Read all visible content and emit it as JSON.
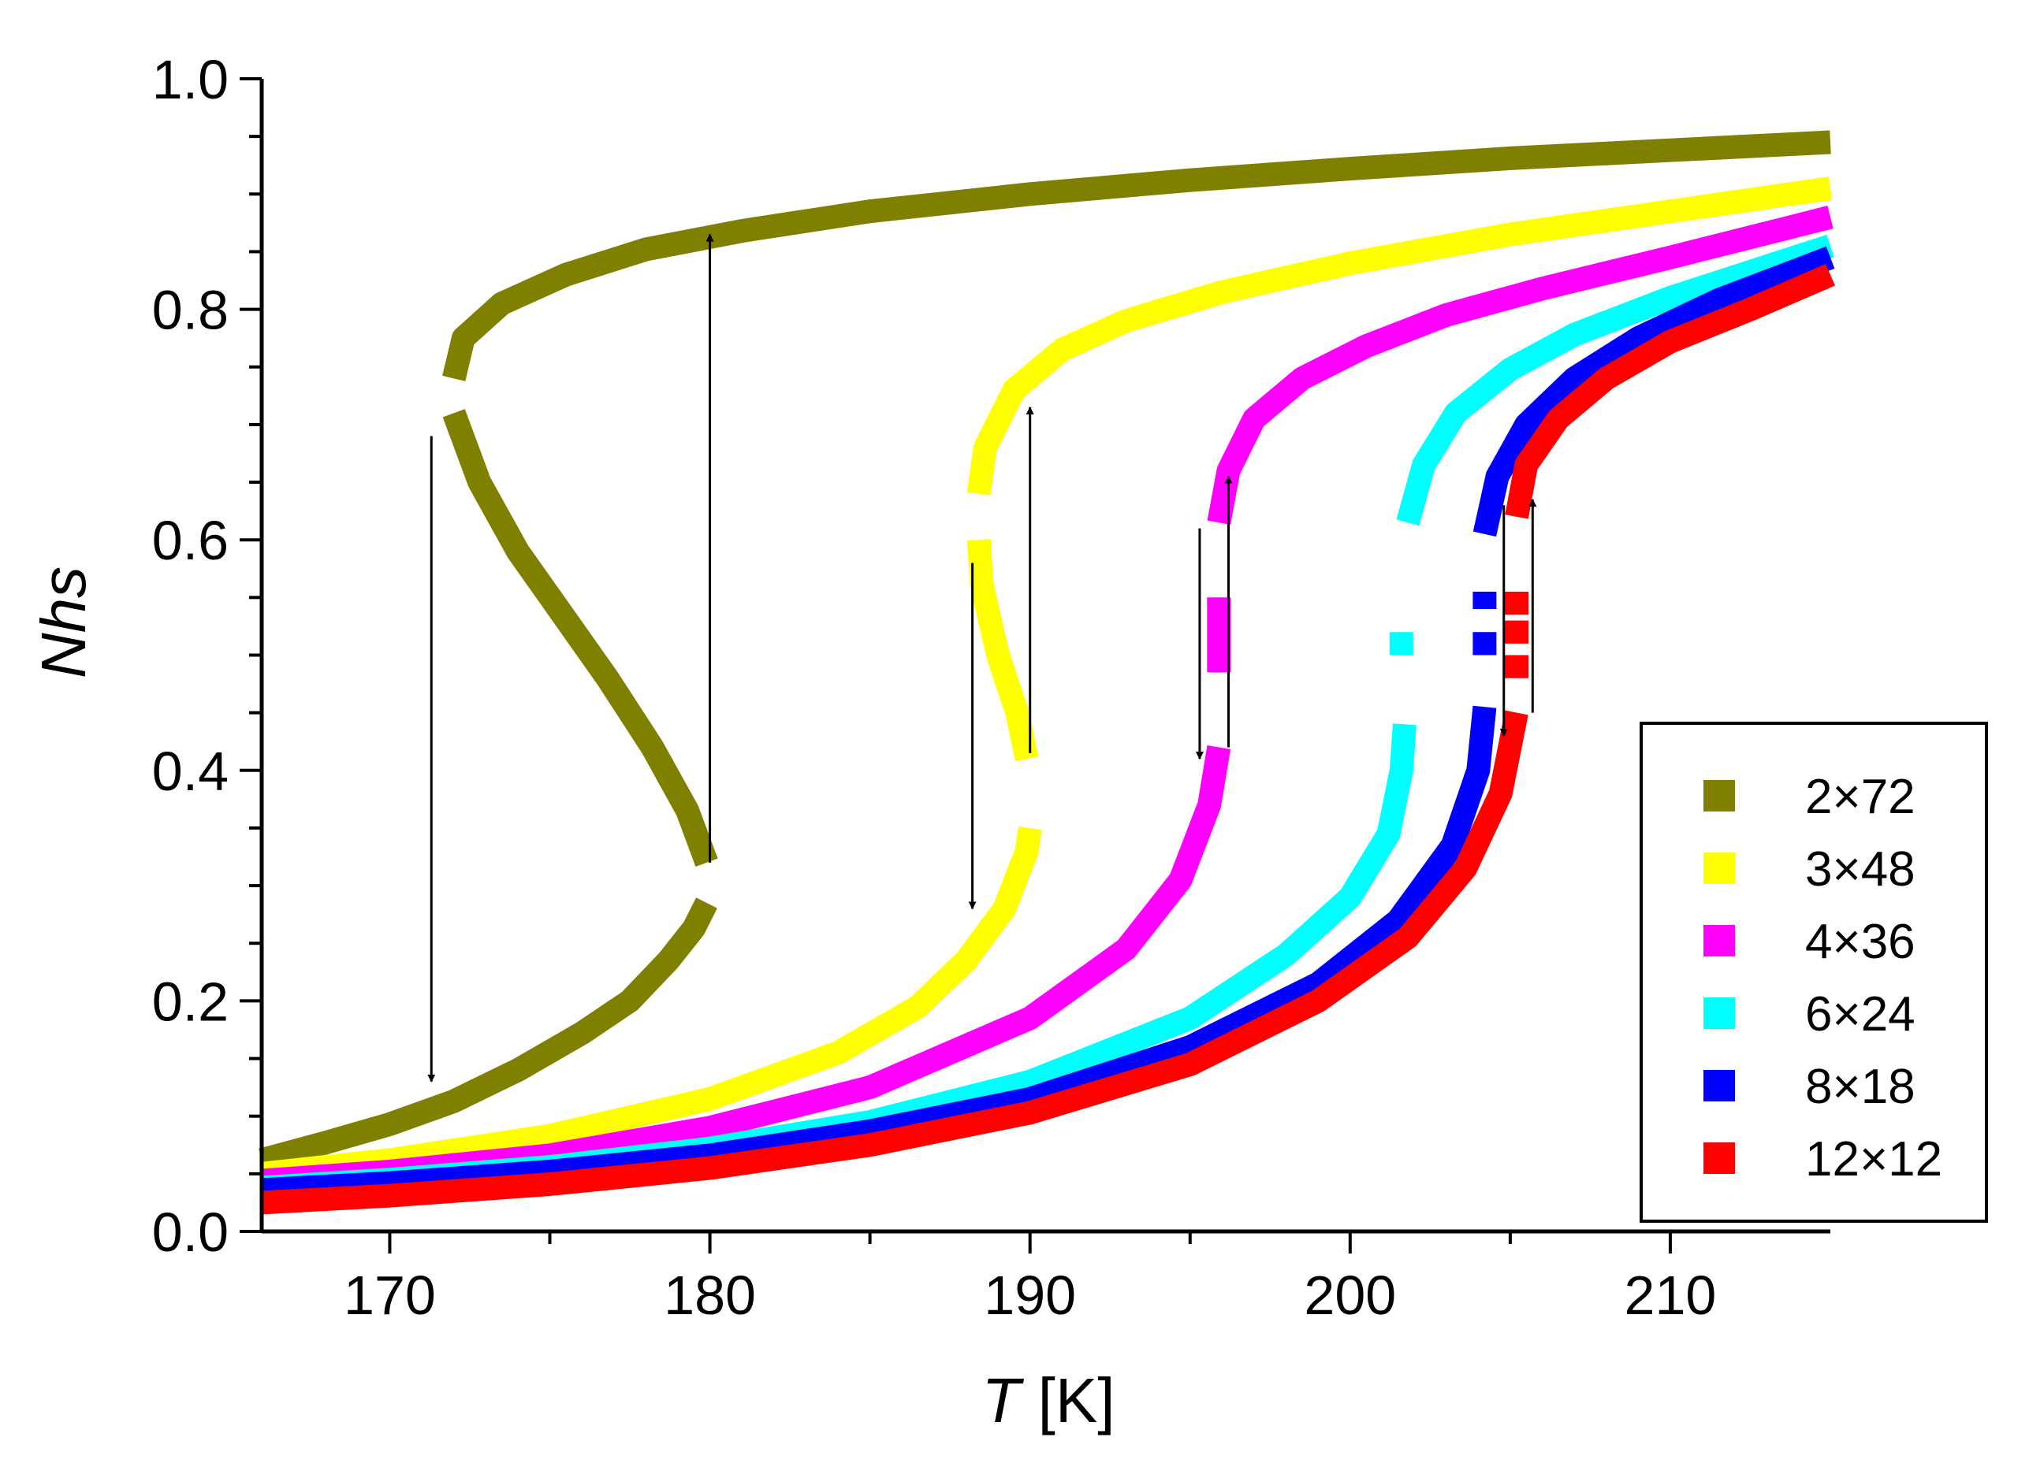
{
  "chart_data": {
    "type": "line",
    "title": "",
    "xlabel_italic": "T",
    "xlabel_unit": " [K]",
    "ylabel_italic": "Nhs",
    "xlim": [
      166,
      215
    ],
    "ylim": [
      0.0,
      1.0
    ],
    "x_ticks": [
      170,
      180,
      190,
      200,
      210
    ],
    "x_tick_labels": [
      "170",
      "180",
      "190",
      "200",
      "210"
    ],
    "y_ticks": [
      0.0,
      0.2,
      0.4,
      0.6,
      0.8,
      1.0
    ],
    "y_tick_labels": [
      "0.0",
      "0.2",
      "0.4",
      "0.6",
      "0.8",
      "1.0"
    ],
    "legend_position": "bottom-right",
    "series": [
      {
        "name": "2×72",
        "color": "#808000",
        "segments": [
          [
            [
              166,
              0.062
            ],
            [
              168,
              0.077
            ],
            [
              170,
              0.093
            ],
            [
              172,
              0.113
            ],
            [
              174,
              0.14
            ],
            [
              176,
              0.172
            ],
            [
              177.5,
              0.2
            ],
            [
              178.7,
              0.235
            ],
            [
              179.5,
              0.263
            ],
            [
              179.9,
              0.285
            ]
          ],
          [
            [
              179.9,
              0.32
            ],
            [
              179.3,
              0.365
            ],
            [
              178.2,
              0.42
            ],
            [
              176.8,
              0.48
            ],
            [
              175.4,
              0.535
            ],
            [
              174.0,
              0.59
            ],
            [
              172.8,
              0.65
            ],
            [
              172.0,
              0.71
            ]
          ],
          [
            [
              172.0,
              0.74
            ],
            [
              172.3,
              0.775
            ],
            [
              173.5,
              0.805
            ],
            [
              175.5,
              0.83
            ],
            [
              178,
              0.852
            ],
            [
              181,
              0.868
            ],
            [
              185,
              0.885
            ],
            [
              190,
              0.9
            ],
            [
              195,
              0.912
            ],
            [
              200,
              0.922
            ],
            [
              205,
              0.931
            ],
            [
              210,
              0.938
            ],
            [
              215,
              0.945
            ]
          ]
        ],
        "arrows": [
          {
            "x": 171.3,
            "from": 0.69,
            "to": 0.13
          },
          {
            "x": 180.0,
            "from": 0.32,
            "to": 0.865
          }
        ]
      },
      {
        "name": "3×48",
        "color": "#ffff00",
        "segments": [
          [
            [
              166,
              0.05
            ],
            [
              170,
              0.062
            ],
            [
              175,
              0.083
            ],
            [
              180,
              0.115
            ],
            [
              184,
              0.155
            ],
            [
              186.5,
              0.195
            ],
            [
              188,
              0.235
            ],
            [
              189.2,
              0.28
            ],
            [
              189.9,
              0.33
            ],
            [
              190.0,
              0.35
            ]
          ],
          [
            [
              189.9,
              0.41
            ],
            [
              189.6,
              0.45
            ],
            [
              189.0,
              0.5
            ],
            [
              188.5,
              0.56
            ],
            [
              188.4,
              0.6
            ]
          ],
          [
            [
              188.4,
              0.64
            ],
            [
              188.6,
              0.68
            ],
            [
              189.5,
              0.73
            ],
            [
              191,
              0.765
            ],
            [
              193,
              0.79
            ],
            [
              196,
              0.815
            ],
            [
              200,
              0.84
            ],
            [
              205,
              0.865
            ],
            [
              210,
              0.885
            ],
            [
              215,
              0.905
            ]
          ]
        ],
        "arrows": [
          {
            "x": 188.2,
            "from": 0.58,
            "to": 0.28
          },
          {
            "x": 190.0,
            "from": 0.415,
            "to": 0.715
          }
        ]
      },
      {
        "name": "4×36",
        "color": "#ff00ff",
        "segments": [
          [
            [
              166,
              0.044
            ],
            [
              170,
              0.052
            ],
            [
              175,
              0.066
            ],
            [
              180,
              0.09
            ],
            [
              185,
              0.125
            ],
            [
              190,
              0.185
            ],
            [
              193,
              0.245
            ],
            [
              194.7,
              0.305
            ],
            [
              195.6,
              0.37
            ],
            [
              195.9,
              0.42
            ]
          ],
          [
            [
              195.9,
              0.485
            ],
            [
              195.9,
              0.55
            ]
          ],
          [
            [
              195.9,
              0.615
            ],
            [
              196.2,
              0.66
            ],
            [
              197,
              0.705
            ],
            [
              198.5,
              0.74
            ],
            [
              200.5,
              0.768
            ],
            [
              203,
              0.795
            ],
            [
              206,
              0.818
            ],
            [
              210,
              0.845
            ],
            [
              215,
              0.88
            ]
          ]
        ],
        "arrows": [
          {
            "x": 195.3,
            "from": 0.61,
            "to": 0.41
          },
          {
            "x": 196.2,
            "from": 0.42,
            "to": 0.655
          }
        ]
      },
      {
        "name": "6×24",
        "color": "#00ffff",
        "segments": [
          [
            [
              166,
              0.038
            ],
            [
              170,
              0.045
            ],
            [
              175,
              0.056
            ],
            [
              180,
              0.072
            ],
            [
              185,
              0.095
            ],
            [
              190,
              0.13
            ],
            [
              195,
              0.185
            ],
            [
              198,
              0.24
            ],
            [
              200,
              0.29
            ],
            [
              201.2,
              0.345
            ],
            [
              201.6,
              0.4
            ],
            [
              201.7,
              0.44
            ]
          ],
          [
            [
              201.6,
              0.5
            ],
            [
              201.6,
              0.52
            ]
          ],
          [
            [
              201.8,
              0.615
            ],
            [
              202.3,
              0.665
            ],
            [
              203.3,
              0.71
            ],
            [
              205,
              0.748
            ],
            [
              207,
              0.778
            ],
            [
              210,
              0.81
            ],
            [
              215,
              0.855
            ]
          ]
        ],
        "arrows": []
      },
      {
        "name": "8×18",
        "color": "#0000ff",
        "segments": [
          [
            [
              166,
              0.036
            ],
            [
              170,
              0.042
            ],
            [
              175,
              0.052
            ],
            [
              180,
              0.066
            ],
            [
              185,
              0.087
            ],
            [
              190,
              0.115
            ],
            [
              195,
              0.16
            ],
            [
              199,
              0.215
            ],
            [
              201.5,
              0.27
            ],
            [
              203.2,
              0.335
            ],
            [
              204.0,
              0.4
            ],
            [
              204.2,
              0.455
            ]
          ],
          [
            [
              204.2,
              0.5
            ],
            [
              204.2,
              0.52
            ]
          ],
          [
            [
              204.2,
              0.54
            ],
            [
              204.2,
              0.555
            ]
          ],
          [
            [
              204.2,
              0.605
            ],
            [
              204.6,
              0.655
            ],
            [
              205.5,
              0.7
            ],
            [
              207,
              0.74
            ],
            [
              209,
              0.775
            ],
            [
              211.5,
              0.808
            ],
            [
              215,
              0.845
            ]
          ]
        ],
        "arrows": []
      },
      {
        "name": "12×12",
        "color": "#ff0000",
        "segments": [
          [
            [
              166,
              0.025
            ],
            [
              170,
              0.031
            ],
            [
              175,
              0.041
            ],
            [
              180,
              0.055
            ],
            [
              185,
              0.075
            ],
            [
              190,
              0.103
            ],
            [
              195,
              0.145
            ],
            [
              199,
              0.2
            ],
            [
              201.8,
              0.255
            ],
            [
              203.6,
              0.315
            ],
            [
              204.7,
              0.38
            ],
            [
              205.2,
              0.45
            ]
          ],
          [
            [
              205.2,
              0.48
            ],
            [
              205.2,
              0.5
            ]
          ],
          [
            [
              205.2,
              0.51
            ],
            [
              205.2,
              0.53
            ]
          ],
          [
            [
              205.2,
              0.535
            ],
            [
              205.2,
              0.555
            ]
          ],
          [
            [
              205.2,
              0.62
            ],
            [
              205.5,
              0.665
            ],
            [
              206.5,
              0.705
            ],
            [
              208,
              0.74
            ],
            [
              210,
              0.772
            ],
            [
              212.5,
              0.8
            ],
            [
              215,
              0.83
            ]
          ]
        ],
        "arrows": [
          {
            "x": 204.8,
            "from": 0.63,
            "to": 0.43
          },
          {
            "x": 205.7,
            "from": 0.45,
            "to": 0.635
          }
        ]
      }
    ]
  }
}
